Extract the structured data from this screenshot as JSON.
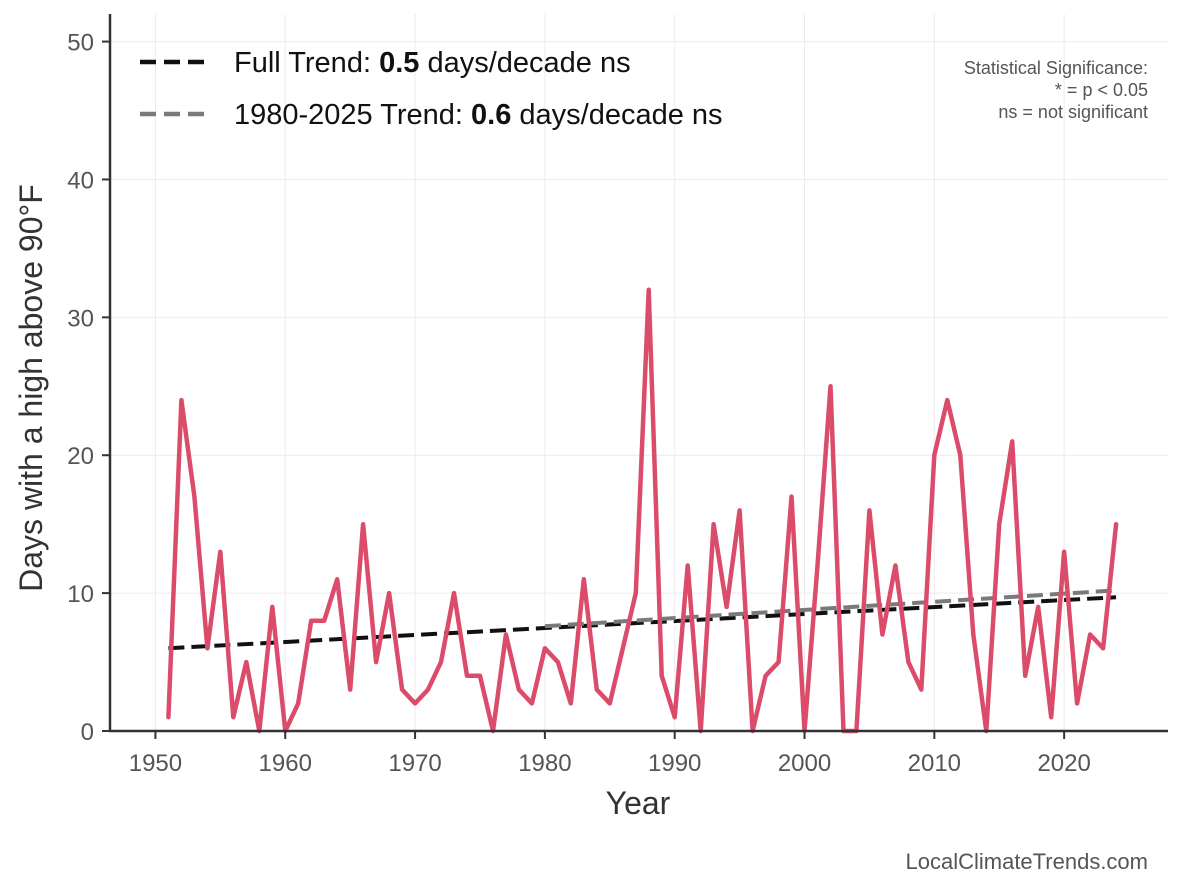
{
  "chart_data": {
    "type": "line",
    "xlabel": "Year",
    "ylabel": "Days with a high above 90°F",
    "xlim": [
      1946.5,
      2028
    ],
    "ylim": [
      0,
      52
    ],
    "x_ticks": [
      1950,
      1960,
      1970,
      1980,
      1990,
      2000,
      2010,
      2020
    ],
    "y_ticks": [
      0,
      10,
      20,
      30,
      40,
      50
    ],
    "grid": true,
    "legend_position": "top-left",
    "series": [
      {
        "color": "#db4c6b",
        "x": [
          1951,
          1952,
          1953,
          1954,
          1955,
          1956,
          1957,
          1958,
          1959,
          1960,
          1961,
          1962,
          1963,
          1964,
          1965,
          1966,
          1967,
          1968,
          1969,
          1970,
          1971,
          1972,
          1973,
          1974,
          1975,
          1976,
          1977,
          1978,
          1979,
          1980,
          1981,
          1982,
          1983,
          1984,
          1985,
          1986,
          1987,
          1988,
          1989,
          1990,
          1991,
          1992,
          1993,
          1994,
          1995,
          1996,
          1997,
          1998,
          1999,
          2000,
          2001,
          2002,
          2003,
          2004,
          2005,
          2006,
          2007,
          2008,
          2009,
          2010,
          2011,
          2012,
          2013,
          2014,
          2015,
          2016,
          2017,
          2018,
          2019,
          2020,
          2021,
          2022,
          2023,
          2024
        ],
        "values": [
          1,
          24,
          17,
          6,
          13,
          1,
          5,
          0,
          9,
          0,
          2,
          8,
          8,
          11,
          3,
          15,
          5,
          10,
          3,
          2,
          3,
          5,
          10,
          4,
          4,
          0,
          7,
          3,
          2,
          6,
          5,
          2,
          11,
          3,
          2,
          6,
          10,
          32,
          4,
          1,
          12,
          0,
          15,
          9,
          16,
          0,
          4,
          5,
          17,
          0,
          12,
          25,
          0,
          0,
          16,
          7,
          12,
          5,
          3,
          20,
          24,
          20,
          7,
          0,
          15,
          21,
          4,
          9,
          1,
          13,
          2,
          7,
          6,
          15
        ]
      }
    ],
    "trend_lines": [
      {
        "label_prefix": "Full Trend: ",
        "value": "0.5",
        "label_suffix": " days/decade ns",
        "x": [
          1951,
          2024
        ],
        "y": [
          6.0,
          9.7
        ],
        "color": "#111111"
      },
      {
        "label_prefix": "1980-2025 Trend: ",
        "value": "0.6",
        "label_suffix": " days/decade ns",
        "x": [
          1980,
          2024
        ],
        "y": [
          7.6,
          10.2
        ],
        "color": "#7a7a7a"
      }
    ],
    "annotations": {
      "significance": [
        "Statistical Significance:",
        "* = p < 0.05",
        "ns = not significant"
      ],
      "source": "LocalClimateTrends.com"
    }
  }
}
